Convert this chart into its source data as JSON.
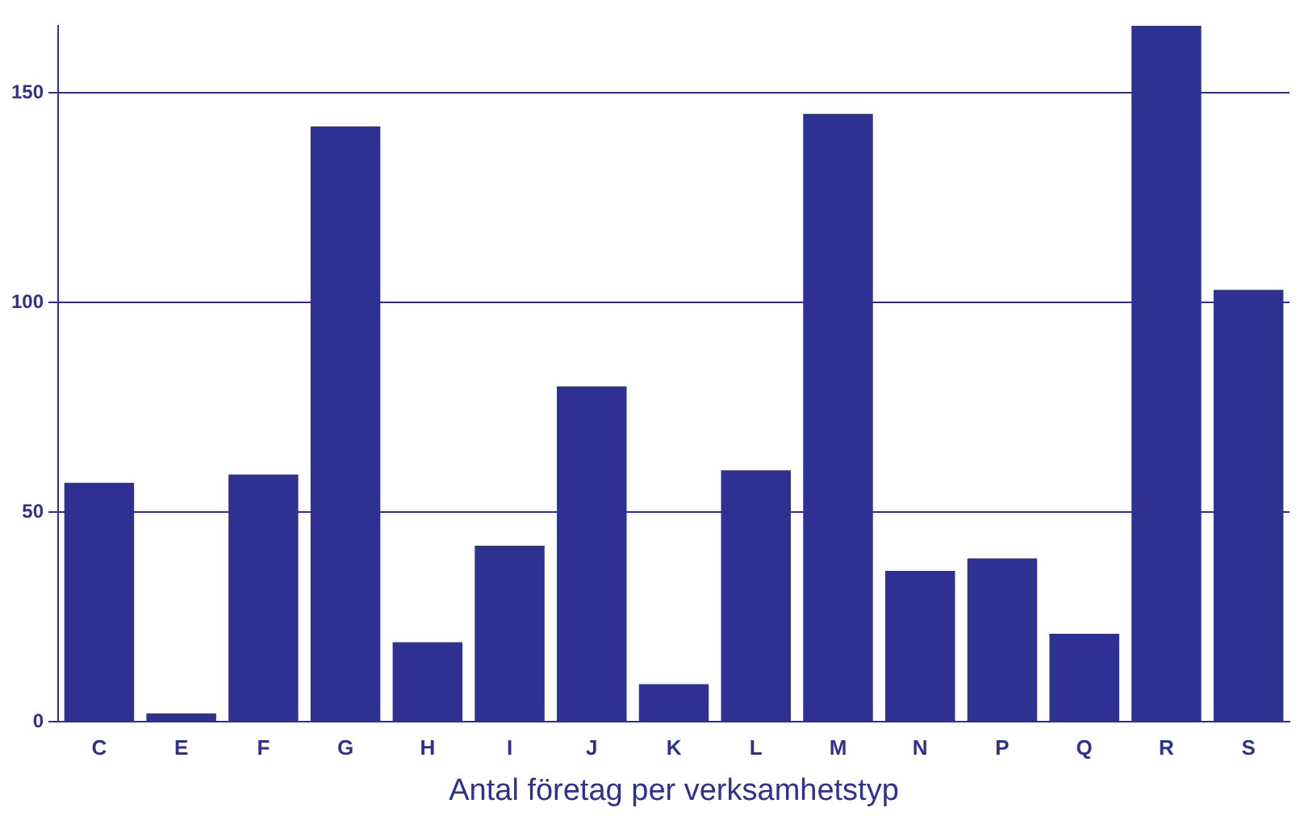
{
  "chart_data": {
    "type": "bar",
    "xlabel": "Antal företag per verksamhetstyp",
    "categories": [
      "C",
      "E",
      "F",
      "G",
      "H",
      "I",
      "J",
      "K",
      "L",
      "M",
      "N",
      "P",
      "Q",
      "R",
      "S"
    ],
    "values": [
      57,
      2,
      59,
      142,
      19,
      42,
      80,
      9,
      60,
      145,
      36,
      39,
      21,
      166,
      103
    ],
    "color": "#2e3192",
    "ylim": [
      0,
      166
    ],
    "yticks": [
      0,
      50,
      100,
      150
    ],
    "grid": "y"
  }
}
